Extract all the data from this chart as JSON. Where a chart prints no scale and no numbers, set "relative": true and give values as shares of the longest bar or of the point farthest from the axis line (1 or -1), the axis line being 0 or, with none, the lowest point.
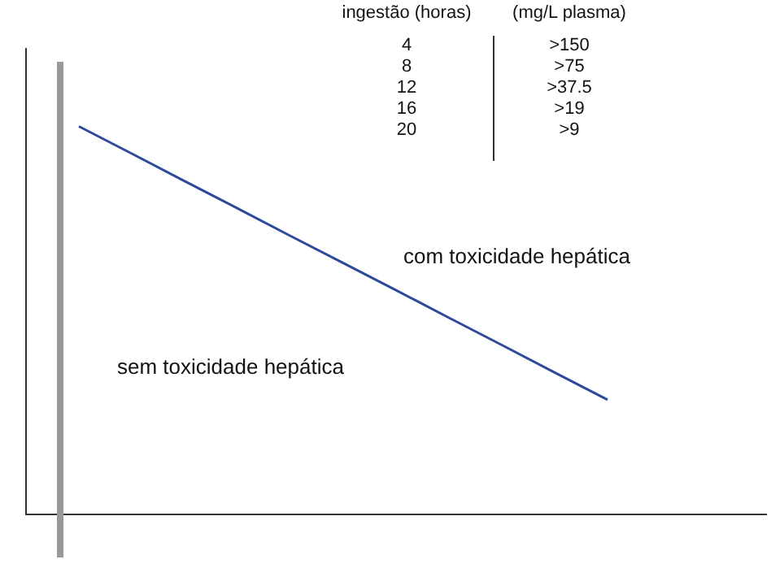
{
  "chart_data": {
    "type": "line",
    "relative": true,
    "categories": [
      null,
      null,
      null,
      null,
      null,
      null,
      null,
      null,
      null,
      null,
      null,
      null,
      null,
      null,
      null
    ],
    "series": [
      {
        "color": "#2b4a9c",
        "values": [
          null,
          1,
          0.93,
          0.859,
          0.789,
          0.718,
          0.648,
          0.578,
          0.507,
          0.437,
          0.366,
          0.296,
          null,
          null,
          null
        ]
      }
    ],
    "marker": "none",
    "grid": false,
    "legend": false,
    "annotations": [
      "ingestão (horas)",
      "(mg/L plasma)",
      "4",
      ">150",
      "8",
      ">75",
      "12",
      ">37.5",
      "16",
      ">19",
      "20",
      ">9",
      "com toxicidade hepática",
      "sem toxicidade hepática"
    ]
  }
}
